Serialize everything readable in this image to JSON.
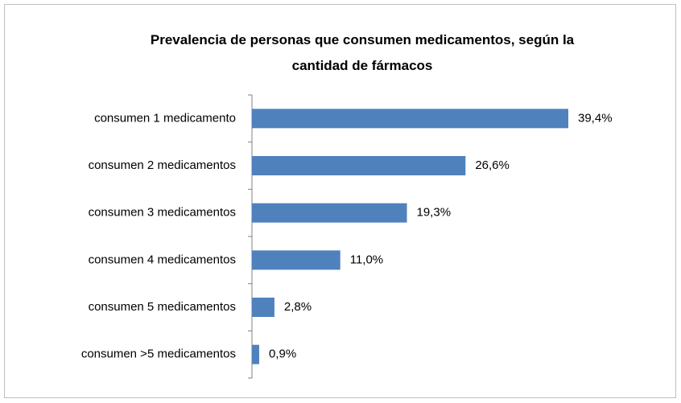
{
  "chart_data": {
    "type": "bar",
    "orientation": "horizontal",
    "title": "Prevalencia de personas que consumen medicamentos, según la cantidad de fármacos",
    "categories": [
      "consumen 1 medicamento",
      "consumen 2 medicamentos",
      "consumen 3 medicamentos",
      "consumen 4 medicamentos",
      "consumen 5 medicamentos",
      "consumen >5 medicamentos"
    ],
    "values": [
      39.4,
      26.6,
      19.3,
      11.0,
      2.8,
      0.9
    ],
    "value_labels": [
      "39,4%",
      "26,6%",
      "19,3%",
      "11,0%",
      "2,8%",
      "0,9%"
    ],
    "color": "#4f81bd"
  }
}
